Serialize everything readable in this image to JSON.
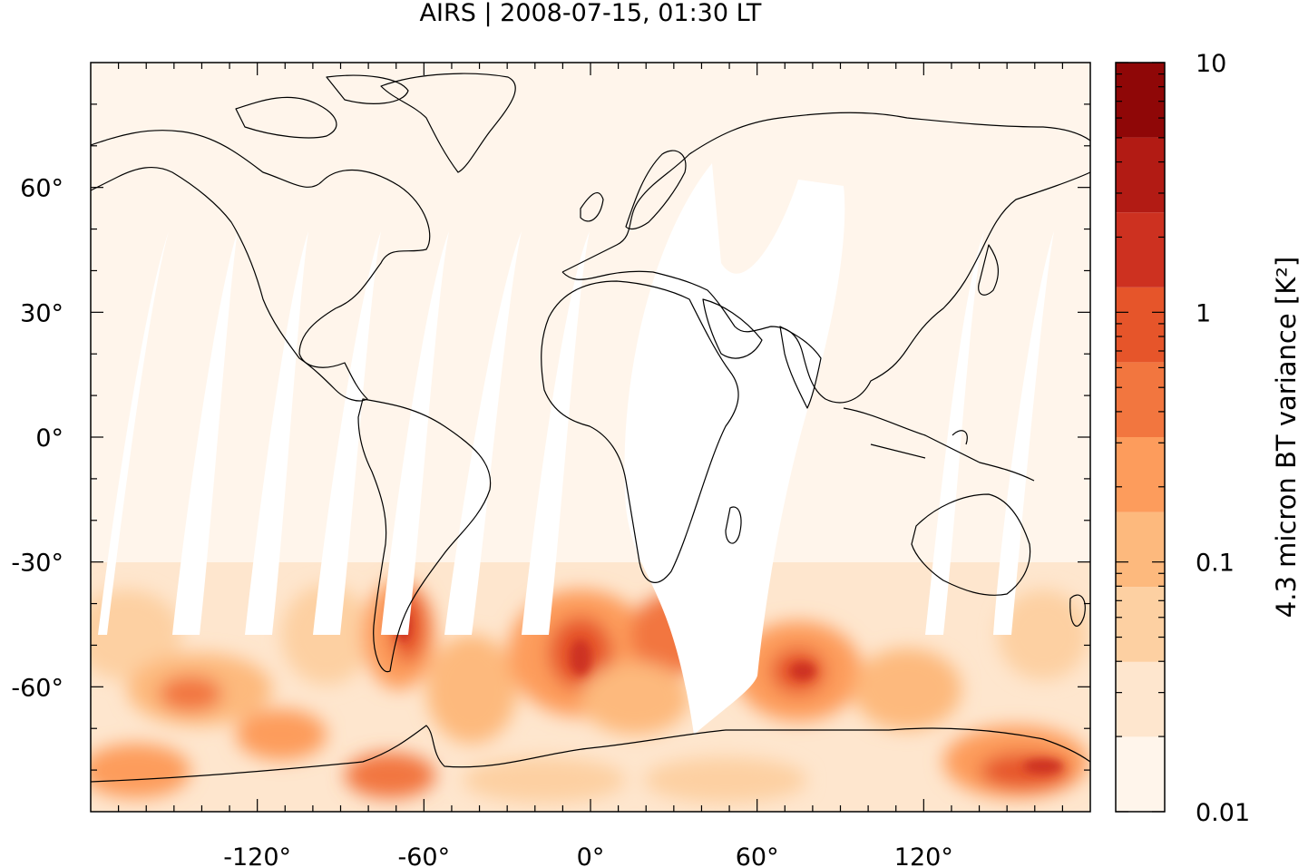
{
  "title": "AIRS | 2008-07-15, 01:30 LT",
  "map": {
    "projection": "equirectangular",
    "lon_range": [
      -180,
      180
    ],
    "lat_range": [
      -90,
      90
    ],
    "x_ticks": [
      {
        "value": -120,
        "label": "-120°"
      },
      {
        "value": -60,
        "label": "-60°"
      },
      {
        "value": 0,
        "label": "0°"
      },
      {
        "value": 60,
        "label": "60°"
      },
      {
        "value": 120,
        "label": "120°"
      }
    ],
    "y_ticks": [
      {
        "value": 60,
        "label": "60°"
      },
      {
        "value": 30,
        "label": "30°"
      },
      {
        "value": 0,
        "label": "0°"
      },
      {
        "value": -30,
        "label": "-30°"
      },
      {
        "value": -60,
        "label": "-60°"
      }
    ],
    "background_color": "#fff5eb",
    "no_data_color": "#ffffff",
    "coastline_color": "#000000"
  },
  "colorbar": {
    "label": "4.3 micron BT variance [K²]",
    "scale": "log",
    "range": [
      0.01,
      10
    ],
    "tick_labels": [
      {
        "value": 10,
        "label": "10"
      },
      {
        "value": 1,
        "label": "1"
      },
      {
        "value": 0.1,
        "label": "0.1"
      },
      {
        "value": 0.01,
        "label": "0.01"
      }
    ],
    "colors": [
      "#fff5eb",
      "#fee6ce",
      "#fdd0a2",
      "#fdb97d",
      "#fd9c5c",
      "#f2763f",
      "#e6552a",
      "#cd3120",
      "#b21b14",
      "#8f0707"
    ]
  }
}
